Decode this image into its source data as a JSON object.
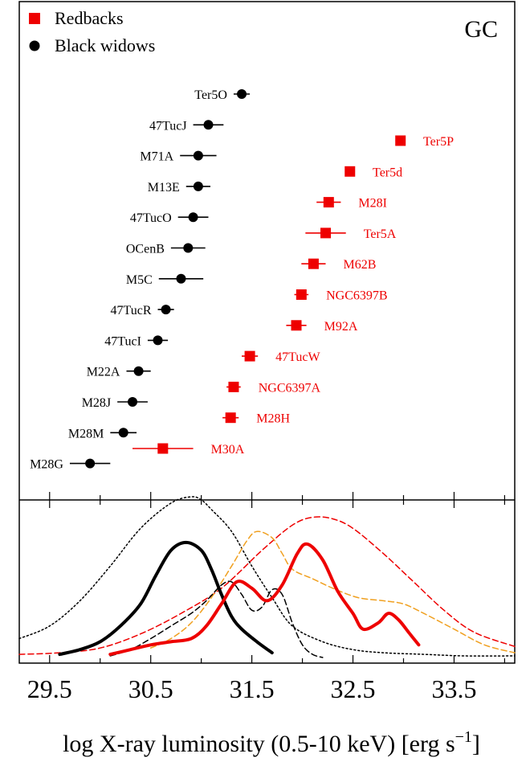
{
  "chart_data": {
    "type": "scatter",
    "panel_label": "GC",
    "xlabel": "log X-ray luminosity (0.5-10 keV) [erg s",
    "xlabel_sup": "−1",
    "xlabel_tail": "]",
    "xlim": [
      29.2,
      34.1
    ],
    "x_ticks": [
      29.5,
      30.5,
      31.5,
      32.5,
      33.5
    ],
    "x_tick_labels": [
      "29.5",
      "30.5",
      "31.5",
      "32.5",
      "33.5"
    ],
    "legend": {
      "placement": "top-left",
      "entries": [
        {
          "label": "Redbacks",
          "marker": "square",
          "color": "#ee0000"
        },
        {
          "label": "Black widows",
          "marker": "circle",
          "color": "#000000"
        }
      ]
    },
    "series": [
      {
        "name": "Black widows",
        "color": "#000000",
        "marker": "circle",
        "points": [
          {
            "label": "Ter5O",
            "x": 31.4,
            "err": 0.08
          },
          {
            "label": "47TucJ",
            "x": 31.07,
            "err": 0.15
          },
          {
            "label": "M71A",
            "x": 30.97,
            "err": 0.18
          },
          {
            "label": "M13E",
            "x": 30.97,
            "err": 0.12
          },
          {
            "label": "47TucO",
            "x": 30.92,
            "err": 0.15
          },
          {
            "label": "OCenB",
            "x": 30.87,
            "err": 0.17
          },
          {
            "label": "M5C",
            "x": 30.8,
            "err": 0.22
          },
          {
            "label": "47TucR",
            "x": 30.65,
            "err": 0.08
          },
          {
            "label": "47TucI",
            "x": 30.57,
            "err": 0.1
          },
          {
            "label": "M22A",
            "x": 30.38,
            "err": 0.12
          },
          {
            "label": "M28J",
            "x": 30.32,
            "err": 0.15
          },
          {
            "label": "M28M",
            "x": 30.23,
            "err": 0.13
          },
          {
            "label": "M28G",
            "x": 29.9,
            "err": 0.2
          }
        ]
      },
      {
        "name": "Redbacks",
        "color": "#ee0000",
        "marker": "square",
        "points": [
          {
            "label": "Ter5P",
            "x": 32.97,
            "err": 0.05
          },
          {
            "label": "Ter5d",
            "x": 32.47,
            "err": 0.05
          },
          {
            "label": "M28I",
            "x": 32.26,
            "err": 0.12
          },
          {
            "label": "Ter5A",
            "x": 32.23,
            "err": 0.2
          },
          {
            "label": "M62B",
            "x": 32.11,
            "err": 0.12
          },
          {
            "label": "NGC6397B",
            "x": 31.99,
            "err": 0.07
          },
          {
            "label": "M92A",
            "x": 31.94,
            "err": 0.1
          },
          {
            "label": "47TucW",
            "x": 31.48,
            "err": 0.08
          },
          {
            "label": "NGC6397A",
            "x": 31.32,
            "err": 0.07
          },
          {
            "label": "M28H",
            "x": 31.29,
            "err": 0.08
          },
          {
            "label": "M30A",
            "x": 30.62,
            "err": 0.3
          }
        ]
      }
    ],
    "density_panel": {
      "curves": [
        {
          "color": "#000000",
          "style": "solid",
          "width": 4,
          "x": [
            29.6,
            29.8,
            30.0,
            30.2,
            30.4,
            30.55,
            30.7,
            30.85,
            31.0,
            31.1,
            31.2,
            31.3,
            31.4,
            31.55,
            31.7
          ],
          "y": [
            0.02,
            0.05,
            0.1,
            0.2,
            0.34,
            0.52,
            0.68,
            0.73,
            0.68,
            0.56,
            0.4,
            0.26,
            0.18,
            0.1,
            0.03
          ]
        },
        {
          "color": "#ee0000",
          "style": "solid",
          "width": 4,
          "x": [
            30.1,
            30.3,
            30.5,
            30.7,
            30.9,
            31.05,
            31.2,
            31.35,
            31.5,
            31.65,
            31.8,
            31.95,
            32.05,
            32.2,
            32.35,
            32.5,
            32.6,
            32.75,
            32.85,
            32.95,
            33.05,
            33.15
          ],
          "y": [
            0.02,
            0.05,
            0.08,
            0.1,
            0.12,
            0.2,
            0.34,
            0.48,
            0.44,
            0.36,
            0.46,
            0.66,
            0.72,
            0.62,
            0.42,
            0.28,
            0.18,
            0.22,
            0.28,
            0.24,
            0.16,
            0.08
          ]
        },
        {
          "color": "#000000",
          "style": "dotted",
          "width": 1.5,
          "x": [
            29.2,
            29.5,
            29.8,
            30.1,
            30.4,
            30.7,
            30.9,
            31.0,
            31.1,
            31.3,
            31.5,
            31.7,
            31.9,
            32.2,
            32.5,
            32.8,
            33.2,
            33.6,
            34.1
          ],
          "y": [
            0.12,
            0.2,
            0.36,
            0.58,
            0.82,
            0.98,
            1.02,
            1.0,
            0.94,
            0.8,
            0.58,
            0.38,
            0.2,
            0.1,
            0.05,
            0.03,
            0.02,
            0.01,
            0.01
          ]
        },
        {
          "color": "#000000",
          "style": "dashed",
          "width": 1.5,
          "x": [
            30.1,
            30.3,
            30.5,
            30.7,
            30.9,
            31.05,
            31.2,
            31.3,
            31.4,
            31.5,
            31.6,
            31.7,
            31.8,
            31.9,
            32.0,
            32.1,
            32.2
          ],
          "y": [
            0.01,
            0.05,
            0.12,
            0.2,
            0.28,
            0.36,
            0.46,
            0.48,
            0.4,
            0.3,
            0.32,
            0.43,
            0.4,
            0.22,
            0.08,
            0.02,
            0.0
          ]
        },
        {
          "color": "#ee0000",
          "style": "dashed",
          "width": 1.5,
          "x": [
            29.2,
            29.6,
            30.0,
            30.4,
            30.8,
            31.2,
            31.6,
            31.9,
            32.1,
            32.3,
            32.5,
            32.8,
            33.1,
            33.4,
            33.7,
            34.1
          ],
          "y": [
            0.02,
            0.03,
            0.06,
            0.15,
            0.28,
            0.44,
            0.68,
            0.84,
            0.89,
            0.88,
            0.82,
            0.66,
            0.48,
            0.3,
            0.16,
            0.07
          ]
        },
        {
          "color": "#f0a020",
          "style": "dashed",
          "width": 1.5,
          "x": [
            30.5,
            30.7,
            30.9,
            31.1,
            31.3,
            31.45,
            31.55,
            31.7,
            31.8,
            31.9,
            32.1,
            32.3,
            32.55,
            32.8,
            33.0,
            33.2,
            33.5,
            33.8,
            34.1
          ],
          "y": [
            0.06,
            0.12,
            0.22,
            0.38,
            0.58,
            0.74,
            0.8,
            0.76,
            0.66,
            0.56,
            0.5,
            0.44,
            0.38,
            0.36,
            0.34,
            0.28,
            0.18,
            0.08,
            0.03
          ]
        }
      ]
    }
  }
}
